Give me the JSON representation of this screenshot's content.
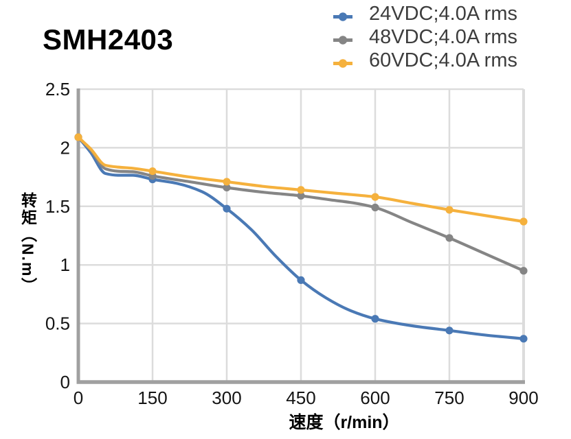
{
  "title": "SMH2403",
  "axes": {
    "xlabel": "速度（r/min）",
    "ylabel": "转矩（N.m）",
    "x_tick_labels": [
      "0",
      "150",
      "300",
      "450",
      "600",
      "750",
      "900"
    ],
    "y_tick_labels": [
      "0",
      "0.5",
      "1",
      "1.5",
      "2",
      "2.5"
    ]
  },
  "legend": {
    "position": "top-right",
    "items": [
      {
        "label": "24VDC;4.0A rms",
        "color": "#4a79b5"
      },
      {
        "label": "48VDC;4.0A rms",
        "color": "#858585"
      },
      {
        "label": "60VDC;4.0A rms",
        "color": "#f5b13d"
      }
    ]
  },
  "chart_data": {
    "type": "line",
    "title": "SMH2403",
    "xlabel": "速度（r/min）",
    "ylabel": "转矩（N.m）",
    "xlim": [
      0,
      900
    ],
    "ylim": [
      0,
      2.5
    ],
    "x_ticks": [
      0,
      150,
      300,
      450,
      600,
      750,
      900
    ],
    "y_ticks": [
      0,
      0.5,
      1,
      1.5,
      2,
      2.5
    ],
    "grid": true,
    "legend_position": "top-right",
    "marker": "circle",
    "series": [
      {
        "name": "24VDC;4.0A rms",
        "color": "#4a79b5",
        "x": [
          0,
          150,
          300,
          450,
          600,
          750,
          900
        ],
        "values": [
          2.09,
          1.73,
          1.48,
          0.87,
          0.54,
          0.44,
          0.37
        ],
        "curve": [
          [
            0,
            2.09
          ],
          [
            25,
            1.96
          ],
          [
            55,
            1.78
          ],
          [
            80,
            1.765
          ],
          [
            110,
            1.765
          ],
          [
            150,
            1.73
          ],
          [
            200,
            1.695
          ],
          [
            250,
            1.625
          ],
          [
            300,
            1.48
          ],
          [
            350,
            1.3
          ],
          [
            400,
            1.07
          ],
          [
            450,
            0.87
          ],
          [
            500,
            0.72
          ],
          [
            550,
            0.61
          ],
          [
            600,
            0.54
          ],
          [
            675,
            0.48
          ],
          [
            750,
            0.44
          ],
          [
            825,
            0.4
          ],
          [
            900,
            0.37
          ]
        ]
      },
      {
        "name": "48VDC;4.0A rms",
        "color": "#858585",
        "x": [
          0,
          150,
          300,
          450,
          600,
          750,
          900
        ],
        "values": [
          2.09,
          1.76,
          1.66,
          1.59,
          1.49,
          1.23,
          0.95
        ],
        "curve": [
          [
            0,
            2.09
          ],
          [
            25,
            1.98
          ],
          [
            55,
            1.82
          ],
          [
            80,
            1.8
          ],
          [
            110,
            1.795
          ],
          [
            150,
            1.76
          ],
          [
            225,
            1.71
          ],
          [
            300,
            1.66
          ],
          [
            375,
            1.62
          ],
          [
            450,
            1.59
          ],
          [
            510,
            1.555
          ],
          [
            555,
            1.53
          ],
          [
            600,
            1.49
          ],
          [
            675,
            1.36
          ],
          [
            750,
            1.23
          ],
          [
            825,
            1.09
          ],
          [
            900,
            0.95
          ]
        ]
      },
      {
        "name": "60VDC;4.0A rms",
        "color": "#f5b13d",
        "x": [
          0,
          150,
          300,
          450,
          600,
          750,
          900
        ],
        "values": [
          2.09,
          1.8,
          1.71,
          1.64,
          1.58,
          1.47,
          1.37
        ],
        "curve": [
          [
            0,
            2.09
          ],
          [
            25,
            1.99
          ],
          [
            55,
            1.85
          ],
          [
            80,
            1.835
          ],
          [
            110,
            1.825
          ],
          [
            150,
            1.8
          ],
          [
            225,
            1.75
          ],
          [
            300,
            1.71
          ],
          [
            375,
            1.67
          ],
          [
            450,
            1.64
          ],
          [
            525,
            1.61
          ],
          [
            600,
            1.58
          ],
          [
            675,
            1.525
          ],
          [
            750,
            1.47
          ],
          [
            825,
            1.42
          ],
          [
            900,
            1.37
          ]
        ]
      }
    ]
  }
}
